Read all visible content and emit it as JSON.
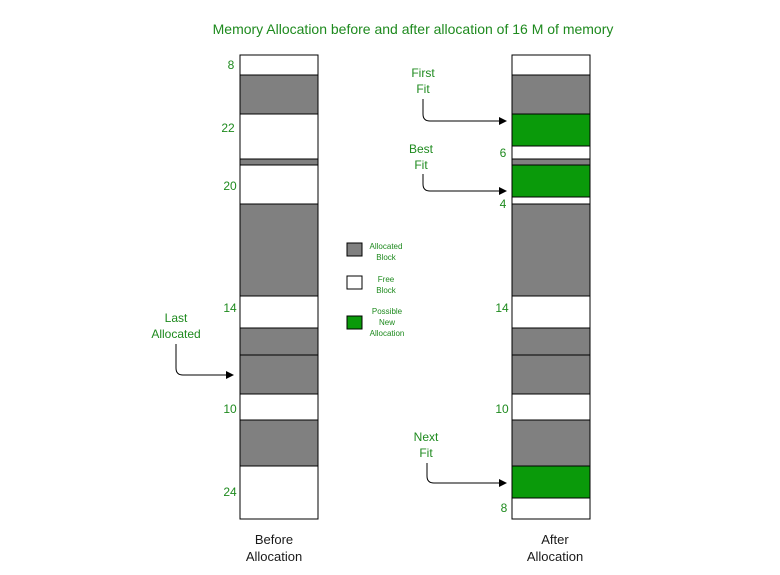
{
  "title": "Memory Allocation before and after allocation of 16 M of memory",
  "colors": {
    "allocated": "#808080",
    "free": "#ffffff",
    "new_allocation": "#0a9a0a",
    "label": "#1e8a1e"
  },
  "before": {
    "caption_line1": "Before",
    "caption_line2": "Allocation",
    "size_labels": [
      "8",
      "22",
      "20",
      "14",
      "10",
      "24"
    ],
    "pointer": {
      "line1": "Last",
      "line2": "Allocated"
    }
  },
  "after": {
    "caption_line1": "After",
    "caption_line2": "Allocation",
    "size_labels": [
      "6",
      "4",
      "14",
      "10",
      "8"
    ],
    "pointers": {
      "first_fit": {
        "line1": "First",
        "line2": "Fit"
      },
      "best_fit": {
        "line1": "Best",
        "line2": "Fit"
      },
      "next_fit": {
        "line1": "Next",
        "line2": "Fit"
      }
    }
  },
  "legend": {
    "allocated": {
      "line1": "Allocated",
      "line2": "Block"
    },
    "free": {
      "line1": "Free",
      "line2": "Block"
    },
    "new": {
      "line1": "Possible",
      "line2": "New",
      "line3": "Allocation"
    }
  }
}
